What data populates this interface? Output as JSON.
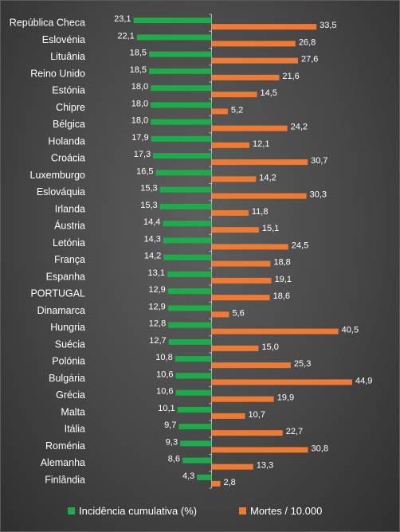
{
  "chart_data": {
    "type": "bar",
    "orientation": "horizontal-diverging",
    "categories": [
      "República Checa",
      "Eslovénia",
      "Lituânia",
      "Reino Unido",
      "Estónia",
      "Chipre",
      "Bélgica",
      "Holanda",
      "Croácia",
      "Luxemburgo",
      "Eslováquia",
      "Irlanda",
      "Áustria",
      "Letónia",
      "França",
      "Espanha",
      "PORTUGAL",
      "Dinamarca",
      "Hungria",
      "Suécia",
      "Polónia",
      "Bulgária",
      "Grécia",
      "Malta",
      "Itália",
      "Roménia",
      "Alemanha",
      "Finlândia"
    ],
    "series": [
      {
        "name": "Incidência cumulativa (%)",
        "color": "#1cad4a",
        "direction": "left",
        "values": [
          23.1,
          22.1,
          18.5,
          18.5,
          18.0,
          18.0,
          18.0,
          17.9,
          17.3,
          16.5,
          15.3,
          15.3,
          14.4,
          14.3,
          14.2,
          13.1,
          12.9,
          12.9,
          12.8,
          12.7,
          10.8,
          10.6,
          10.6,
          10.1,
          9.7,
          9.3,
          8.6,
          4.3
        ],
        "labels": [
          "23,1",
          "22,1",
          "18,5",
          "18,5",
          "18,0",
          "18,0",
          "18,0",
          "17,9",
          "17,3",
          "16,5",
          "15,3",
          "15,3",
          "14,4",
          "14,3",
          "14,2",
          "13,1",
          "12,9",
          "12,9",
          "12,8",
          "12,7",
          "10,8",
          "10,6",
          "10,6",
          "10,1",
          "9,7",
          "9,3",
          "8,6",
          "4,3"
        ]
      },
      {
        "name": "Mortes / 10.000",
        "color": "#f07a32",
        "direction": "right",
        "values": [
          33.5,
          26.8,
          27.6,
          21.6,
          14.5,
          5.2,
          24.2,
          12.1,
          30.7,
          14.2,
          30.3,
          11.8,
          15.1,
          24.5,
          18.8,
          19.1,
          18.6,
          5.6,
          40.5,
          15.0,
          25.3,
          44.9,
          19.9,
          10.7,
          22.7,
          30.8,
          13.3,
          2.8
        ],
        "labels": [
          "33,5",
          "26,8",
          "27,6",
          "21,6",
          "14,5",
          "5,2",
          "24,2",
          "12,1",
          "30,7",
          "14,2",
          "30,3",
          "11,8",
          "15,1",
          "24,5",
          "18,8",
          "19,1",
          "18,6",
          "5,6",
          "40,5",
          "15,0",
          "25,3",
          "44,9",
          "19,9",
          "10,7",
          "22,7",
          "30,8",
          "13,3",
          "2,8"
        ]
      }
    ],
    "title": "",
    "xlabel": "",
    "ylabel": "",
    "grid": false,
    "legend": "bottom"
  }
}
